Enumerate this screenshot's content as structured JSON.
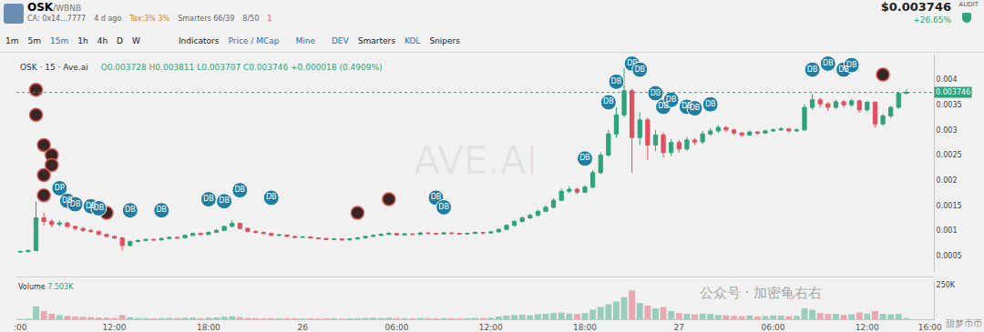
{
  "header": {
    "pair": "OSK",
    "quote": "/WBNB",
    "ca": "CA: 0x14...7777",
    "age": "4 d ago",
    "tax": "Tax:3% 3%",
    "smarters": "Smarters 66/39",
    "holders": "8/50",
    "alerts": "1",
    "price": "$0.003746",
    "change": "+26.65%",
    "audit": "AUDIT"
  },
  "toolbar": {
    "intervals": [
      "1m",
      "5m",
      "15m",
      "1h",
      "4h",
      "D",
      "W"
    ],
    "active": "15m",
    "items": [
      "Indicators",
      "Price / MCap",
      "Mine",
      "DEV",
      "Smarters",
      "KOL",
      "Snipers"
    ]
  },
  "watermarks": {
    "wechat": "公众号 · 加密龟右右",
    "corner": "甜梦币币"
  },
  "chart_data": {
    "type": "candlestick",
    "title": "OSK · 15 · Ave.ai",
    "ohlc_label": "O0.003728 H0.003811 L0.003707 C0.003746 +0.000018 (0.4909%)",
    "watermark": "AVE.AI",
    "categories": [
      ":00",
      null,
      null,
      null,
      null,
      null,
      null,
      null,
      null,
      null,
      null,
      null,
      "12:00",
      null,
      null,
      null,
      null,
      null,
      null,
      null,
      null,
      null,
      null,
      null,
      "18:00",
      null,
      null,
      null,
      null,
      null,
      null,
      null,
      null,
      null,
      null,
      null,
      "26",
      null,
      null,
      null,
      null,
      null,
      null,
      null,
      null,
      null,
      null,
      null,
      "06:00",
      null,
      null,
      null,
      null,
      null,
      null,
      null,
      null,
      null,
      null,
      null,
      "12:00",
      null,
      null,
      null,
      null,
      null,
      null,
      null,
      null,
      null,
      null,
      null,
      "18:00",
      null,
      null,
      null,
      null,
      null,
      null,
      null,
      null,
      null,
      null,
      null,
      "27",
      null,
      null,
      null,
      null,
      null,
      null,
      null,
      null,
      null,
      null,
      null,
      "06:00",
      null,
      null,
      null,
      null,
      null,
      null,
      null,
      null,
      null,
      null,
      null,
      "12:00",
      null,
      null,
      null,
      null,
      null,
      null,
      null,
      "16:00"
    ],
    "open": [
      0.00057,
      0.00058,
      0.0006,
      0.00125,
      0.00118,
      0.00112,
      0.00115,
      0.00108,
      0.00104,
      0.001,
      0.00098,
      0.00092,
      0.00088,
      0.00085,
      0.0007,
      0.00078,
      0.0008,
      0.00082,
      0.00081,
      0.00084,
      0.00086,
      0.00085,
      0.0009,
      0.00094,
      0.00092,
      0.00096,
      0.001,
      0.00108,
      0.00114,
      0.00104,
      0.00098,
      0.00096,
      0.00094,
      0.0009,
      0.00091,
      0.00088,
      0.00086,
      0.00087,
      0.00085,
      0.00084,
      0.00082,
      0.00083,
      0.00081,
      0.00083,
      0.00085,
      0.00088,
      0.0009,
      0.00092,
      0.00094,
      0.00091,
      0.00093,
      0.00092,
      0.00095,
      0.00094,
      0.00093,
      0.00095,
      0.00094,
      0.00093,
      0.00094,
      0.00096,
      0.00095,
      0.00097,
      0.00102,
      0.0011,
      0.00118,
      0.00125,
      0.0013,
      0.00138,
      0.00146,
      0.0016,
      0.00178,
      0.00182,
      0.00176,
      0.00186,
      0.00215,
      0.0025,
      0.00292,
      0.0033,
      0.00378,
      0.00285,
      0.0032,
      0.0027,
      0.0029,
      0.00255,
      0.00275,
      0.00262,
      0.0028,
      0.00276,
      0.00292,
      0.00298,
      0.00305,
      0.003,
      0.00294,
      0.0029,
      0.00296,
      0.00294,
      0.00298,
      0.003,
      0.00302,
      0.00298,
      0.003,
      0.00345,
      0.0036,
      0.00352,
      0.00345,
      0.00356,
      0.0035,
      0.00358,
      0.0034,
      0.00355,
      0.00312,
      0.00328,
      0.00345,
      0.003728,
      null,
      null,
      null
    ],
    "high": [
      0.0006,
      0.00062,
      0.00158,
      0.00135,
      0.00122,
      0.0012,
      0.00117,
      0.0011,
      0.00106,
      0.00103,
      0.001,
      0.00094,
      0.0009,
      0.00087,
      0.0008,
      0.00082,
      0.00084,
      0.00084,
      0.00086,
      0.00088,
      0.00088,
      0.00092,
      0.00096,
      0.00096,
      0.00098,
      0.00103,
      0.0011,
      0.0012,
      0.00116,
      0.00106,
      0.001,
      0.00098,
      0.00096,
      0.00093,
      0.00092,
      0.00089,
      0.00089,
      0.00088,
      0.00086,
      0.00085,
      0.00085,
      0.00084,
      0.00085,
      0.00087,
      0.0009,
      0.00092,
      0.00094,
      0.00097,
      0.00095,
      0.00095,
      0.00094,
      0.00097,
      0.00096,
      0.00095,
      0.00097,
      0.00096,
      0.00095,
      0.00096,
      0.00098,
      0.00097,
      0.00099,
      0.00104,
      0.00112,
      0.0012,
      0.00128,
      0.00133,
      0.00141,
      0.0015,
      0.00164,
      0.00184,
      0.00188,
      0.00185,
      0.0019,
      0.0022,
      0.00256,
      0.003,
      0.00345,
      0.00423,
      0.00382,
      0.00335,
      0.00325,
      0.003,
      0.00295,
      0.00282,
      0.0028,
      0.00286,
      0.00284,
      0.00298,
      0.00304,
      0.0031,
      0.00308,
      0.00302,
      0.00296,
      0.00299,
      0.00298,
      0.00301,
      0.00303,
      0.00306,
      0.00304,
      0.00303,
      0.00352,
      0.00372,
      0.00364,
      0.00356,
      0.0036,
      0.0036,
      0.00362,
      0.0036,
      0.00358,
      0.00357,
      0.00332,
      0.00348,
      0.00376,
      0.003811,
      null,
      null,
      null
    ],
    "low": [
      0.00056,
      0.00057,
      0.00059,
      0.0011,
      0.00106,
      0.00108,
      0.00104,
      0.001,
      0.00097,
      0.00095,
      0.0009,
      0.00086,
      0.00083,
      0.0006,
      0.00068,
      0.00076,
      0.00079,
      0.00079,
      0.0008,
      0.00083,
      0.00083,
      0.00084,
      0.00089,
      0.0009,
      0.00091,
      0.00095,
      0.00099,
      0.00106,
      0.00102,
      0.00096,
      0.00094,
      0.00092,
      0.00089,
      0.00089,
      0.00086,
      0.00085,
      0.00085,
      0.00084,
      0.00083,
      0.00081,
      0.00081,
      0.0008,
      0.0008,
      0.00082,
      0.00084,
      0.00087,
      0.00089,
      0.00091,
      0.0009,
      0.0009,
      0.00091,
      0.00091,
      0.00093,
      0.00092,
      0.00092,
      0.00093,
      0.00092,
      0.00092,
      0.00093,
      0.00094,
      0.00094,
      0.00096,
      0.00101,
      0.00108,
      0.00116,
      0.00122,
      0.00128,
      0.00136,
      0.00144,
      0.00158,
      0.00174,
      0.00172,
      0.00174,
      0.00184,
      0.00212,
      0.00246,
      0.00285,
      0.00325,
      0.00215,
      0.0027,
      0.0024,
      0.00258,
      0.00245,
      0.00248,
      0.00255,
      0.00258,
      0.0027,
      0.00272,
      0.00288,
      0.00294,
      0.00296,
      0.0029,
      0.00286,
      0.00288,
      0.0029,
      0.00292,
      0.00296,
      0.00298,
      0.00295,
      0.00296,
      0.00298,
      0.0034,
      0.00345,
      0.00338,
      0.00342,
      0.00344,
      0.00346,
      0.00334,
      0.00336,
      0.00305,
      0.00308,
      0.00324,
      0.00342,
      0.003707,
      null,
      null,
      null
    ],
    "close": [
      0.00058,
      0.0006,
      0.00125,
      0.00118,
      0.00112,
      0.00115,
      0.00108,
      0.00104,
      0.001,
      0.00098,
      0.00092,
      0.00088,
      0.00085,
      0.0007,
      0.00078,
      0.0008,
      0.00082,
      0.00081,
      0.00084,
      0.00086,
      0.00085,
      0.0009,
      0.00094,
      0.00092,
      0.00096,
      0.001,
      0.00108,
      0.00114,
      0.00104,
      0.00098,
      0.00096,
      0.00094,
      0.0009,
      0.00091,
      0.00088,
      0.00086,
      0.00087,
      0.00085,
      0.00084,
      0.00082,
      0.00083,
      0.00081,
      0.00083,
      0.00085,
      0.00088,
      0.0009,
      0.00092,
      0.00094,
      0.00091,
      0.00093,
      0.00092,
      0.00095,
      0.00094,
      0.00093,
      0.00095,
      0.00094,
      0.00093,
      0.00094,
      0.00096,
      0.00095,
      0.00097,
      0.00102,
      0.0011,
      0.00118,
      0.00125,
      0.0013,
      0.00138,
      0.00146,
      0.0016,
      0.00178,
      0.00182,
      0.00176,
      0.00186,
      0.00215,
      0.0025,
      0.00292,
      0.0033,
      0.00378,
      0.00285,
      0.0032,
      0.0027,
      0.0029,
      0.00255,
      0.00275,
      0.00262,
      0.0028,
      0.00276,
      0.00292,
      0.00298,
      0.00305,
      0.003,
      0.00294,
      0.0029,
      0.00296,
      0.00294,
      0.00298,
      0.003,
      0.00302,
      0.00298,
      0.003,
      0.00345,
      0.0036,
      0.00352,
      0.00345,
      0.00356,
      0.0035,
      0.00358,
      0.0034,
      0.00355,
      0.00312,
      0.00328,
      0.00345,
      0.003728,
      0.003746,
      null,
      null,
      null
    ],
    "volume": [
      3000,
      5000,
      95000,
      60000,
      40000,
      30000,
      25000,
      20000,
      18000,
      15000,
      14000,
      12000,
      10000,
      30000,
      15000,
      9000,
      8000,
      7000,
      9000,
      10000,
      8000,
      12000,
      14000,
      9000,
      11000,
      13000,
      18000,
      22000,
      15000,
      10000,
      8000,
      7000,
      9000,
      6000,
      7000,
      6000,
      5000,
      6000,
      5000,
      7000,
      6000,
      5000,
      7000,
      8000,
      10000,
      11000,
      9000,
      12000,
      8000,
      9000,
      7000,
      10000,
      8000,
      7000,
      9000,
      8000,
      7000,
      8000,
      10000,
      9000,
      12000,
      20000,
      26000,
      30000,
      34000,
      28000,
      36000,
      40000,
      45000,
      50000,
      42000,
      38000,
      44000,
      70000,
      90000,
      110000,
      130000,
      160000,
      210000,
      120000,
      100000,
      80000,
      90000,
      60000,
      45000,
      40000,
      35000,
      42000,
      38000,
      30000,
      28000,
      25000,
      22000,
      26000,
      20000,
      24000,
      28000,
      26000,
      22000,
      25000,
      80000,
      70000,
      45000,
      38000,
      40000,
      32000,
      36000,
      50000,
      42000,
      60000,
      40000,
      34000,
      38000,
      7503,
      null,
      null,
      null
    ],
    "volume_label": "Volume",
    "volume_value_label": "7.503K",
    "last_price": 0.003746,
    "ylim": [
      0.00018,
      0.0045
    ],
    "yticks": [
      0.0005,
      0.001,
      0.0015,
      0.002,
      0.0025,
      0.003,
      0.0035,
      0.004
    ],
    "y2lim": [
      0,
      270000
    ],
    "y2ticks": [
      {
        "value": 250000,
        "label": "250K"
      }
    ],
    "grid": false,
    "markers": [
      {
        "x": 5,
        "y": 0.00184,
        "label": "DP"
      },
      {
        "x": 6,
        "y": 0.00159,
        "label": "DB"
      },
      {
        "x": 7,
        "y": 0.00152,
        "label": "DB"
      },
      {
        "x": 9,
        "y": 0.00148,
        "label": "DB"
      },
      {
        "x": 10,
        "y": 0.00144,
        "label": "DB"
      },
      {
        "x": 14,
        "y": 0.0014,
        "label": "DB"
      },
      {
        "x": 18,
        "y": 0.0014,
        "label": "DB"
      },
      {
        "x": 24,
        "y": 0.00162,
        "label": "DB"
      },
      {
        "x": 26,
        "y": 0.00158,
        "label": "DB"
      },
      {
        "x": 28,
        "y": 0.0018,
        "label": "DB"
      },
      {
        "x": 32,
        "y": 0.00165,
        "label": "DB"
      },
      {
        "x": 53,
        "y": 0.00165,
        "label": "DB"
      },
      {
        "x": 54,
        "y": 0.00146,
        "label": "DB"
      },
      {
        "x": 72,
        "y": 0.00243,
        "label": "DB"
      },
      {
        "x": 75,
        "y": 0.00355,
        "label": "DB"
      },
      {
        "x": 76,
        "y": 0.00396,
        "label": "DB"
      },
      {
        "x": 78,
        "y": 0.00432,
        "label": "DP"
      },
      {
        "x": 79,
        "y": 0.0042,
        "label": "DB"
      },
      {
        "x": 81,
        "y": 0.00373,
        "label": "DB"
      },
      {
        "x": 82,
        "y": 0.00346,
        "label": "DB"
      },
      {
        "x": 83,
        "y": 0.0036,
        "label": "DB"
      },
      {
        "x": 85,
        "y": 0.00346,
        "label": "DB"
      },
      {
        "x": 86,
        "y": 0.00343,
        "label": "DB"
      },
      {
        "x": 88,
        "y": 0.00351,
        "label": "DB"
      },
      {
        "x": 101,
        "y": 0.0042,
        "label": "DB"
      },
      {
        "x": 103,
        "y": 0.00432,
        "label": "DB"
      },
      {
        "x": 105,
        "y": 0.0042,
        "label": "DB"
      },
      {
        "x": 106,
        "y": 0.00429,
        "label": "DB"
      }
    ],
    "avatars": [
      {
        "x": 2,
        "y": 0.0038
      },
      {
        "x": 2,
        "y": 0.0033
      },
      {
        "x": 3,
        "y": 0.0027
      },
      {
        "x": 4,
        "y": 0.0025
      },
      {
        "x": 4,
        "y": 0.0023
      },
      {
        "x": 3,
        "y": 0.0021
      },
      {
        "x": 3,
        "y": 0.0017
      },
      {
        "x": 11,
        "y": 0.00135
      },
      {
        "x": 43,
        "y": 0.00135
      },
      {
        "x": 47,
        "y": 0.00162
      },
      {
        "x": 110,
        "y": 0.0041
      }
    ]
  }
}
